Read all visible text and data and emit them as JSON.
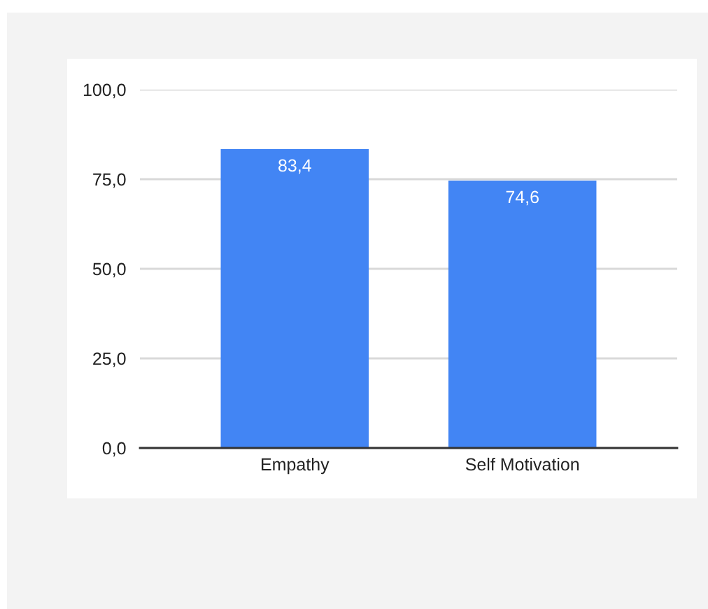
{
  "chart_data": {
    "type": "bar",
    "categories": [
      "Empathy",
      "Self Motivation"
    ],
    "values": [
      83.4,
      74.6
    ],
    "color": "#4285f4",
    "value_labels": [
      "83,4",
      "74,6"
    ],
    "ylim": [
      0,
      100
    ],
    "yticks": [
      {
        "value": 0,
        "label": "0,0"
      },
      {
        "value": 25,
        "label": "25,0"
      },
      {
        "value": 50,
        "label": "50,0"
      },
      {
        "value": 75,
        "label": "75,0"
      },
      {
        "value": 100,
        "label": "100,0"
      }
    ],
    "grid": "y"
  }
}
